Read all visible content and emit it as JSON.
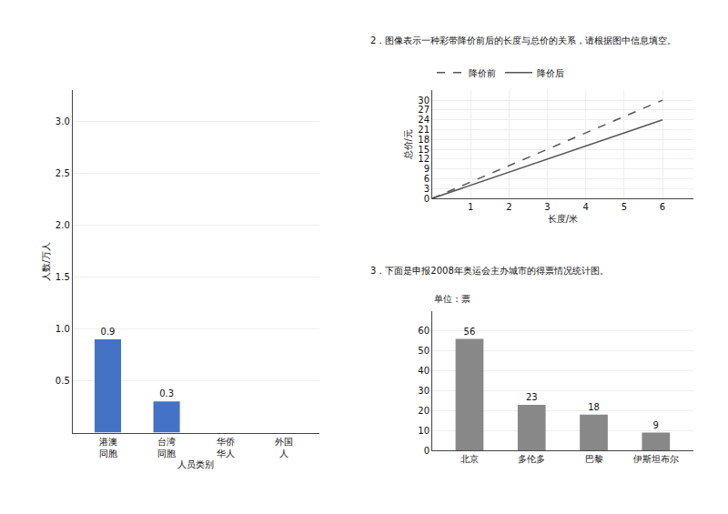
{
  "chart_data": [
    {
      "type": "bar",
      "categories": [
        "港澳\n同胞",
        "台湾\n同胞",
        "华侨\n华人",
        "外国\n人"
      ],
      "values": [
        0.9,
        0.3,
        0.0,
        0.0
      ],
      "value_labels": [
        "0.9",
        "0.3",
        null,
        null
      ],
      "data_labels": true,
      "color": "#4472c4",
      "xlabel": "人员类别",
      "ylabel": "人数/万人",
      "ylim": [
        0,
        3.3
      ],
      "yticks": [
        0.5,
        {
          "value": 1.0,
          "label": "1.0"
        },
        1.5,
        {
          "value": 2.0,
          "label": "2.0"
        },
        2.5,
        {
          "value": 3.0,
          "label": "3.0"
        }
      ],
      "grid": true
    },
    {
      "type": "line",
      "title": "2．图像表示一种彩带降价前后的长度与总价的关系，请根据图中信息填空。",
      "x": [
        0,
        1,
        2,
        3,
        4,
        5,
        6
      ],
      "series": [
        {
          "name": "降价前",
          "color": "#555555",
          "line_style": "dashed",
          "values": [
            0,
            5,
            10,
            15,
            20,
            25,
            30
          ]
        },
        {
          "name": "降价后",
          "color": "#555555",
          "line_style": "solid",
          "values": [
            0,
            4,
            8,
            12,
            16,
            20,
            24
          ]
        }
      ],
      "xlabel": "长度/米",
      "ylabel": "总价/元",
      "xlim": [
        0,
        6.8
      ],
      "xticks": [
        1,
        2,
        3,
        4,
        5,
        6
      ],
      "ylim": [
        0,
        33
      ],
      "yticks": [
        0,
        3,
        6,
        9,
        12,
        15,
        18,
        21,
        24,
        27,
        30
      ],
      "grid": true,
      "legend": "top"
    },
    {
      "type": "bar",
      "title": "3．下面是申报2008年奥运会主办城市的得票情况统计图。",
      "categories": [
        "北京",
        "多伦多",
        "巴黎",
        "伊斯坦布尔"
      ],
      "values": [
        56,
        23,
        18,
        9
      ],
      "data_labels": true,
      "color": "#888888",
      "annotations": [
        "单位：票"
      ],
      "ylim": [
        0,
        70
      ],
      "yticks": [
        0,
        10,
        20,
        30,
        40,
        50,
        60
      ],
      "grid": true
    }
  ]
}
